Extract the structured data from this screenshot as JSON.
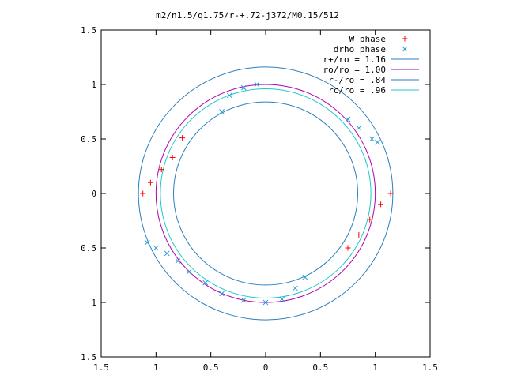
{
  "chart_data": {
    "type": "scatter",
    "title": "m2/n1.5/q1.75/r-+.72-j372/M0.15/512",
    "xlabel": "",
    "ylabel": "",
    "xlim": [
      -1.5,
      1.5
    ],
    "ylim": [
      -1.5,
      1.5
    ],
    "x_tick_values": [
      -1.5,
      -1,
      -0.5,
      0,
      0.5,
      1,
      1.5
    ],
    "x_tick_labels": [
      "1.5",
      "1",
      "0.5",
      "0",
      "0.5",
      "1",
      "1.5"
    ],
    "y_tick_values": [
      1.5,
      1,
      0.5,
      0,
      -0.5,
      -1,
      -1.5
    ],
    "y_tick_labels": [
      "1.5",
      "1",
      "0.5",
      "0",
      "0.5",
      "1",
      "1.5"
    ],
    "grid": false,
    "legend_position": "top-right",
    "series": [
      {
        "name": "W phase",
        "kind": "points",
        "marker": "plus",
        "color": "#ff0000",
        "clusters": [
          {
            "x": [
              -1.12,
              -1.05,
              -0.95,
              -0.85,
              -0.76
            ],
            "y": [
              0.0,
              0.1,
              0.22,
              0.33,
              0.51
            ]
          },
          {
            "x": [
              0.75,
              0.85,
              0.95,
              1.05,
              1.14
            ],
            "y": [
              -0.5,
              -0.38,
              -0.24,
              -0.1,
              0.0
            ]
          }
        ]
      },
      {
        "name": "drho phase",
        "kind": "points",
        "marker": "cross",
        "color": "#2a9fd6",
        "clusters": [
          {
            "x": [
              -0.4,
              -0.33,
              -0.2,
              -0.08
            ],
            "y": [
              0.75,
              0.9,
              0.97,
              1.0
            ]
          },
          {
            "x": [
              0.75,
              0.85,
              0.97,
              1.02
            ],
            "y": [
              0.68,
              0.6,
              0.5,
              0.47
            ]
          },
          {
            "x": [
              -1.08,
              -1.0,
              -0.9,
              -0.8,
              -0.7,
              -0.55,
              -0.4,
              -0.2
            ],
            "y": [
              -0.45,
              -0.5,
              -0.55,
              -0.62,
              -0.72,
              -0.82,
              -0.92,
              -0.98
            ]
          },
          {
            "x": [
              0.0,
              0.15,
              0.27,
              0.36
            ],
            "y": [
              -1.0,
              -0.97,
              -0.87,
              -0.77
            ]
          }
        ]
      },
      {
        "name": "r+/ro = 1.16",
        "kind": "circle",
        "r": 1.16,
        "color": "#2a7fc0"
      },
      {
        "name": "ro/ro = 1.00",
        "kind": "circle",
        "r": 1.0,
        "color": "#b000b0"
      },
      {
        "name": "r-/ro = .84",
        "kind": "circle",
        "r": 0.84,
        "color": "#2a7fc0"
      },
      {
        "name": "rc/ro = .96",
        "kind": "circle",
        "r": 0.96,
        "color": "#20c8c8"
      }
    ]
  }
}
